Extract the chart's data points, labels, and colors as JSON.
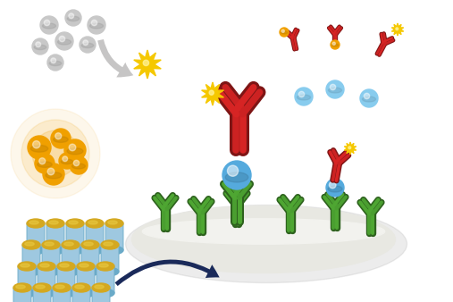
{
  "bg_color": "#ffffff",
  "green_ab": "#4a9e30",
  "green_ab_dark": "#2d7010",
  "red_ab": "#cc2222",
  "red_ab_dark": "#881111",
  "blue_bead": "#55aadd",
  "yellow_star": "#f5c800",
  "yellow_dot": "#f0a000",
  "gray_dot": "#c8c8c8",
  "cyan_dot": "#88ccee",
  "tube_color": "#9ec8e0",
  "tube_dark": "#6aaac8",
  "tube_top": "#d4a820",
  "tube_top_light": "#e8c840",
  "arrow_gray": "#c0bfbf",
  "dark_arrow": "#1a2a5a",
  "orange_glow": "#f0a000",
  "plate_fill": "#e8e8e2",
  "plate_top": "#f2f2ee"
}
